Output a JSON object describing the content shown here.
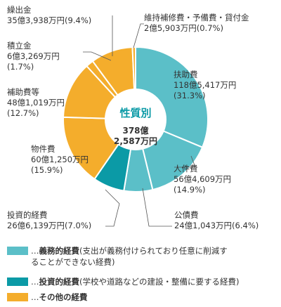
{
  "chart_data": {
    "type": "pie",
    "style": "donut",
    "center_title": "性質別",
    "center_total_line1": "378億",
    "center_total_line2": "2,587万円",
    "slices": [
      {
        "name": "扶助費",
        "amount": "118億5,417万円",
        "percent_text": "(31.3%)",
        "value": 31.3,
        "group": "mandatory"
      },
      {
        "name": "人件費",
        "amount": "56億4,609万円",
        "percent_text": "(14.9%)",
        "value": 14.9,
        "group": "mandatory"
      },
      {
        "name": "公債費",
        "amount": "24億1,043万円(6.4%)",
        "value": 6.4,
        "group": "mandatory"
      },
      {
        "name": "投資的経費",
        "amount": "26億6,139万円(7.0%)",
        "value": 7.0,
        "group": "investment"
      },
      {
        "name": "物件費",
        "amount": "60億1,250万円",
        "percent_text": "(15.9%)",
        "value": 15.9,
        "group": "other"
      },
      {
        "name": "補助費等",
        "amount": "48億1,019万円",
        "percent_text": "(12.7%)",
        "value": 12.7,
        "group": "other"
      },
      {
        "name": "積立金",
        "amount": "6億3,269万円",
        "percent_text": "(1.7%)",
        "value": 1.7,
        "group": "other"
      },
      {
        "name": "繰出金",
        "amount": "35億3,938万円(9.4%)",
        "value": 9.4,
        "group": "other"
      },
      {
        "name": "維持補修費・予備費・貸付金",
        "amount": "2億5,903万円(0.7%)",
        "value": 0.7,
        "group": "other"
      }
    ],
    "colors": {
      "mandatory": "#5bbfc8",
      "investment": "#0b9aa6",
      "other": "#f4ad2c",
      "border": "#ffffff",
      "leader": "#555555"
    }
  },
  "legend": [
    {
      "group": "mandatory",
      "prefix": "…",
      "bold": "義務的経費",
      "text": "(支出が義務付けられており任意に削減す",
      "text2": "ることができない経費)"
    },
    {
      "group": "investment",
      "prefix": "…",
      "bold": "投資的経費",
      "text": "(学校や道路などの建設・整備に要する経費)"
    },
    {
      "group": "other",
      "prefix": "…",
      "bold": "その他の経費",
      "text": ""
    }
  ]
}
